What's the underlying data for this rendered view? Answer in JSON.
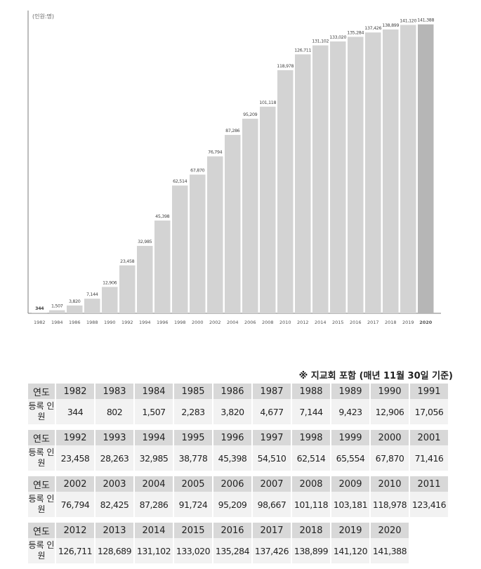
{
  "chart_data": {
    "type": "bar",
    "unit_label": "(인원:명)",
    "categories": [
      "1982",
      "1984",
      "1986",
      "1988",
      "1990",
      "1992",
      "1994",
      "1996",
      "1998",
      "2000",
      "2002",
      "2004",
      "2006",
      "2008",
      "2010",
      "2012",
      "2014",
      "2015",
      "2016",
      "2017",
      "2018",
      "2019",
      "2020"
    ],
    "values": [
      344,
      1507,
      3820,
      7144,
      12906,
      23458,
      32985,
      45398,
      62514,
      67870,
      76794,
      87286,
      95209,
      101118,
      118978,
      126711,
      131102,
      133020,
      135284,
      137426,
      138899,
      141120,
      141388
    ],
    "value_labels": [
      "344",
      "1,507",
      "3,820",
      "7,144",
      "12,906",
      "23,458",
      "32,985",
      "45,398",
      "62,514",
      "67,870",
      "76,794",
      "87,286",
      "95,209",
      "101,118",
      "118,978",
      "126,711",
      "131,102",
      "133,020",
      "135,284",
      "137,426",
      "138,899",
      "141,120",
      "141,388"
    ],
    "ylim": [
      0,
      143000
    ],
    "bar_color": "#d3d3d3",
    "highlight_color": "#b6b6b6",
    "highlight_category": "2020",
    "grid": false,
    "legend": "none"
  },
  "table": {
    "note": "※ 지교회 포함 (매년 11월 30일 기준)",
    "year_label": "연도",
    "count_label": "등록 인원",
    "blocks": [
      {
        "years": [
          "1982",
          "1983",
          "1984",
          "1985",
          "1986",
          "1987",
          "1988",
          "1989",
          "1990",
          "1991"
        ],
        "values": [
          "344",
          "802",
          "1,507",
          "2,283",
          "3,820",
          "4,677",
          "7,144",
          "9,423",
          "12,906",
          "17,056"
        ]
      },
      {
        "years": [
          "1992",
          "1993",
          "1994",
          "1995",
          "1996",
          "1997",
          "1998",
          "1999",
          "2000",
          "2001"
        ],
        "values": [
          "23,458",
          "28,263",
          "32,985",
          "38,778",
          "45,398",
          "54,510",
          "62,514",
          "65,554",
          "67,870",
          "71,416"
        ]
      },
      {
        "years": [
          "2002",
          "2003",
          "2004",
          "2005",
          "2006",
          "2007",
          "2008",
          "2009",
          "2010",
          "2011"
        ],
        "values": [
          "76,794",
          "82,425",
          "87,286",
          "91,724",
          "95,209",
          "98,667",
          "101,118",
          "103,181",
          "118,978",
          "123,416"
        ]
      },
      {
        "years": [
          "2012",
          "2013",
          "2014",
          "2015",
          "2016",
          "2017",
          "2018",
          "2019",
          "2020"
        ],
        "values": [
          "126,711",
          "128,689",
          "131,102",
          "133,020",
          "135,284",
          "137,426",
          "138,899",
          "141,120",
          "141,388"
        ]
      }
    ]
  }
}
